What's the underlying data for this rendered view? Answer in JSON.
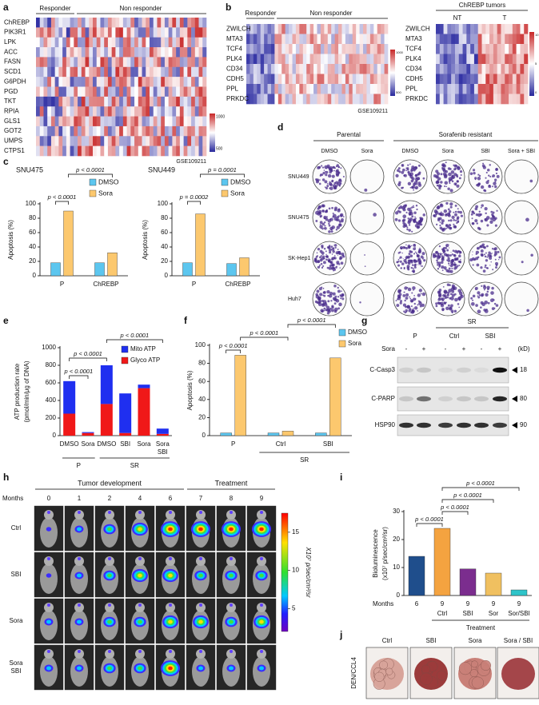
{
  "panels": [
    "a",
    "b",
    "c",
    "d",
    "e",
    "f",
    "g",
    "h",
    "i",
    "j"
  ],
  "heatmap_a": {
    "groups": [
      "Responder",
      "Non responder"
    ],
    "genes": [
      "ChREBP",
      "PIK3R1",
      "LPK",
      "ACC",
      "FASN",
      "SCD1",
      "G6PDH",
      "PGD",
      "TKT",
      "RPIA",
      "GLS1",
      "GOT2",
      "UMPS",
      "CTPS1"
    ],
    "colorbar_ticks": [
      1000,
      500
    ],
    "dataset": "GSE109211"
  },
  "heatmap_b": {
    "groups": [
      "Responder",
      "Non responder"
    ],
    "genes": [
      "ZWILCH",
      "MTA3",
      "TCF4",
      "PLK4",
      "CD34",
      "CDH5",
      "PPL",
      "PRKDC"
    ],
    "colorbar_ticks": [
      1000,
      500
    ],
    "dataset": "GSE109211"
  },
  "heatmap_b2": {
    "title": "ChREBP tumors",
    "groups": [
      "NT",
      "T"
    ],
    "genes": [
      "ZWILCH",
      "MTA3",
      "TCF4",
      "PLK4",
      "CD34",
      "CDH5",
      "PPL",
      "PRKDC"
    ],
    "colorbar_ticks": [
      10,
      5,
      0
    ]
  },
  "colony": {
    "groups": [
      "Parental",
      "Sorafenib resistant"
    ],
    "conditions": [
      "DMSO",
      "Sora",
      "DMSO",
      "Sora",
      "SBI",
      "Sora + SBI"
    ],
    "cell_lines": [
      "SNU449",
      "SNU475",
      "SK-Hep1",
      "Huh7"
    ]
  },
  "western": {
    "group": "SR",
    "lanes": [
      "P",
      "Ctrl",
      "SBI"
    ],
    "treatment": "Sora",
    "signs": [
      "-",
      "+",
      "-",
      "+",
      "-",
      "+"
    ],
    "unit": "(kD)",
    "blots": [
      {
        "name": "C-Casp3",
        "size": 18
      },
      {
        "name": "C-PARP",
        "size": 80
      },
      {
        "name": "HSP90",
        "size": 90
      }
    ]
  },
  "imaging": {
    "phases": [
      "Tumor development",
      "Treatment"
    ],
    "months_label": "Months",
    "months": [
      0,
      1,
      2,
      4,
      6,
      7,
      8,
      9
    ],
    "groups": [
      "Ctrl",
      "SBI",
      "Sora",
      [
        "Sora",
        "SBI"
      ]
    ],
    "colorbar": {
      "label": "X10⁷ p/sec/cm²/sr",
      "lim": [
        2,
        17.5
      ],
      "ticks": [
        5,
        10,
        15
      ]
    }
  },
  "livers": {
    "label": "DEN/CCL4",
    "groups": [
      "Ctrl",
      "SBI",
      "Sora",
      "Sora / SBI"
    ]
  },
  "chart_data": [
    {
      "type": "bar",
      "title": "SNU475",
      "ylabel": "Apoptosis (%)",
      "categories": [
        "P",
        "ChREBP"
      ],
      "series": [
        {
          "name": "DMSO",
          "color": "#5cc6ef",
          "values": [
            18,
            18
          ]
        },
        {
          "name": "Sora",
          "color": "#fcc86e",
          "values": [
            90,
            32
          ]
        }
      ],
      "ylim": [
        0,
        100
      ],
      "yticks": [
        0,
        20,
        40,
        60,
        80,
        100
      ],
      "annotations": [
        "p < 0.0001",
        "p < 0.0001"
      ]
    },
    {
      "type": "bar",
      "title": "SNU449",
      "ylabel": "Apoptosis (%)",
      "categories": [
        "P",
        "ChREBP"
      ],
      "series": [
        {
          "name": "DMSO",
          "color": "#5cc6ef",
          "values": [
            18,
            17
          ]
        },
        {
          "name": "Sora",
          "color": "#fcc86e",
          "values": [
            86,
            25
          ]
        }
      ],
      "ylim": [
        0,
        100
      ],
      "yticks": [
        0,
        20,
        40,
        60,
        80,
        100
      ],
      "annotations": [
        "p = 0.0002",
        "p = 0.0001"
      ]
    },
    {
      "type": "stacked_bar",
      "ylabel": [
        "ATP production rate",
        "(pmol/min/μg of DNA)"
      ],
      "categories": [
        "DMSO",
        "Sora",
        "DMSO",
        "SBI",
        "Sora",
        [
          "Sora",
          "SBI"
        ]
      ],
      "series": [
        {
          "name": "Mito ATP",
          "color": "#1f2ff0",
          "values": [
            370,
            10,
            440,
            450,
            40,
            60
          ]
        },
        {
          "name": "Glyco ATP",
          "color": "#f01818",
          "values": [
            250,
            30,
            360,
            30,
            540,
            20
          ]
        }
      ],
      "ylim": [
        0,
        1000
      ],
      "yticks": [
        0,
        200,
        400,
        600,
        800,
        1000
      ],
      "group_labels": [
        "P",
        "SR"
      ],
      "annotations": [
        "p < 0.0001",
        "p < 0.0001",
        "p < 0.0001"
      ]
    },
    {
      "type": "bar",
      "ylabel": "Apoptosis (%)",
      "categories": [
        "P",
        "Ctrl",
        "SBI"
      ],
      "series": [
        {
          "name": "DMSO",
          "color": "#5cc6ef",
          "values": [
            3,
            3,
            3
          ]
        },
        {
          "name": "Sora",
          "color": "#fcc86e",
          "values": [
            89,
            5,
            86
          ]
        }
      ],
      "ylim": [
        0,
        100
      ],
      "yticks": [
        0,
        20,
        40,
        60,
        80,
        100
      ],
      "group_labels": [
        "SR"
      ],
      "annotations": [
        "p < 0.0001",
        "p < 0.0001",
        "p < 0.0001"
      ]
    },
    {
      "type": "bar",
      "ylabel": [
        "Bioluminescence",
        "(x10⁷ p/sec/cm²/sr)"
      ],
      "categories": [
        null,
        "Ctrl",
        "SBI",
        "Sor",
        "Sor/SBI"
      ],
      "months_label": "Months",
      "months": [
        6,
        9,
        9,
        9,
        9
      ],
      "values": [
        14,
        24,
        9.5,
        8,
        2
      ],
      "colors": [
        "#1f4e8c",
        "#f4a340",
        "#7b2d8e",
        "#f0c060",
        "#2ec4c9"
      ],
      "ylim": [
        0,
        30
      ],
      "yticks": [
        0,
        10,
        20,
        30
      ],
      "group_labels": [
        "Treatment"
      ],
      "annotations": [
        "p < 0.0001",
        "p < 0.0001",
        "p < 0.0001",
        "p < 0.0001"
      ]
    }
  ]
}
